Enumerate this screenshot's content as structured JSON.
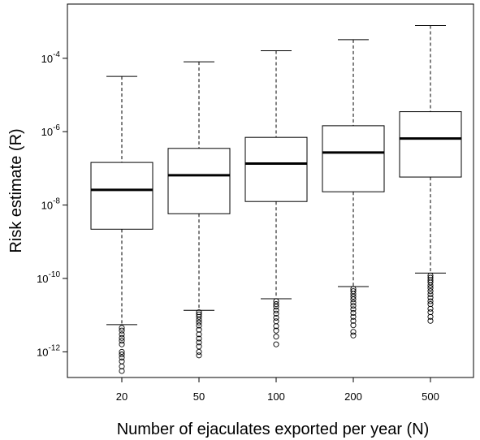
{
  "chart_data": {
    "type": "boxplot",
    "title": "",
    "xlabel": "Number of ejaculates exported per year (N)",
    "ylabel": "Risk estimate (R)",
    "y_scale": "log10",
    "ylim": [
      2e-13,
      0.003
    ],
    "categories": [
      "20",
      "50",
      "100",
      "200",
      "500"
    ],
    "y_ticks": [
      {
        "value": 1e-12,
        "base": "10",
        "exp": "-12"
      },
      {
        "value": 1e-10,
        "base": "10",
        "exp": "-10"
      },
      {
        "value": 1e-08,
        "base": "10",
        "exp": "-8"
      },
      {
        "value": 1e-06,
        "base": "10",
        "exp": "-6"
      },
      {
        "value": 0.0001,
        "base": "10",
        "exp": "-4"
      }
    ],
    "boxes": [
      {
        "category": "20",
        "whisker_low": 5.5e-12,
        "q1": 2.2e-09,
        "median": 2.6e-08,
        "q3": 1.45e-07,
        "whisker_high": 3.2e-05,
        "outliers": [
          4.5e-12,
          3.8e-12,
          3e-12,
          2.4e-12,
          2e-12,
          1.6e-12,
          1e-12,
          8.5e-13,
          7e-13,
          5.5e-13,
          4e-13,
          3e-13
        ]
      },
      {
        "category": "50",
        "whisker_low": 1.35e-11,
        "q1": 5.8e-09,
        "median": 6.5e-08,
        "q3": 3.5e-07,
        "whisker_high": 8e-05,
        "outliers": [
          1.2e-11,
          1.05e-11,
          9e-12,
          7.5e-12,
          6.3e-12,
          5.2e-12,
          4e-12,
          3e-12,
          2.3e-12,
          1.8e-12,
          1.4e-12,
          1e-12,
          8e-13
        ]
      },
      {
        "category": "100",
        "whisker_low": 2.8e-11,
        "q1": 1.25e-08,
        "median": 1.35e-07,
        "q3": 7e-07,
        "whisker_high": 0.00016,
        "outliers": [
          2.4e-11,
          2e-11,
          1.7e-11,
          1.35e-11,
          1.1e-11,
          8.5e-12,
          6.8e-12,
          5e-12,
          3.8e-12,
          2.6e-12,
          1.6e-12
        ]
      },
      {
        "category": "200",
        "whisker_low": 6e-11,
        "q1": 2.3e-08,
        "median": 2.7e-07,
        "q3": 1.45e-06,
        "whisker_high": 0.00032,
        "outliers": [
          5.2e-11,
          4.5e-11,
          3.8e-11,
          3.2e-11,
          2.7e-11,
          2.2e-11,
          1.8e-11,
          1.45e-11,
          1.15e-11,
          9e-12,
          7e-12,
          5.3e-12,
          3.5e-12,
          2.8e-12
        ]
      },
      {
        "category": "500",
        "whisker_low": 1.4e-10,
        "q1": 5.8e-08,
        "median": 6.5e-07,
        "q3": 3.5e-06,
        "whisker_high": 0.00078,
        "outliers": [
          1.2e-10,
          1.05e-10,
          9e-11,
          7.8e-11,
          6.5e-11,
          5.5e-11,
          4.5e-11,
          3.7e-11,
          3e-11,
          2.4e-11,
          2e-11,
          1.5e-11,
          1.2e-11,
          9e-12,
          7e-12
        ]
      }
    ],
    "grid": false,
    "legend": "none"
  }
}
